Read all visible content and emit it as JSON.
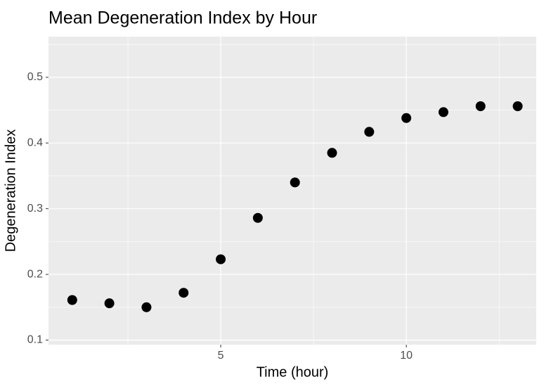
{
  "chart_data": {
    "type": "scatter",
    "title": "Mean Degeneration Index by Hour",
    "xlabel": "Time (hour)",
    "ylabel": "Degeneration Index",
    "x": [
      1,
      2,
      3,
      4,
      5,
      6,
      7,
      8,
      9,
      10,
      11,
      12,
      13
    ],
    "values": [
      0.161,
      0.156,
      0.15,
      0.172,
      0.223,
      0.286,
      0.34,
      0.385,
      0.417,
      0.438,
      0.447,
      0.456,
      0.456
    ],
    "color": "#000000",
    "xlim": [
      0.36,
      13.5
    ],
    "xticks": [
      5,
      10
    ],
    "ylim": [
      0.093,
      0.562
    ],
    "yticks": [
      0.1,
      0.2,
      0.3,
      0.4,
      0.5
    ],
    "x_minor_grid": [
      2.5,
      7.5,
      12.5
    ],
    "y_minor_grid": [
      0.15,
      0.25,
      0.35,
      0.45,
      0.55
    ],
    "grid": true
  }
}
